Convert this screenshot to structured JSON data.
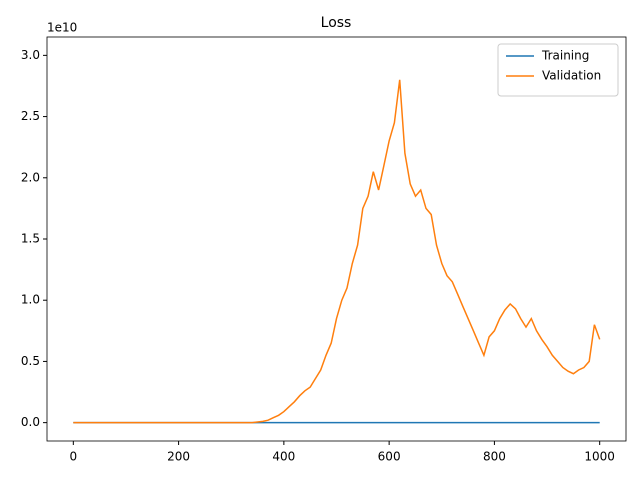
{
  "chart_data": {
    "type": "line",
    "title": "Loss",
    "y_offset_label": "1e10",
    "x": [
      0,
      10,
      20,
      30,
      40,
      50,
      60,
      70,
      80,
      90,
      100,
      110,
      120,
      130,
      140,
      150,
      160,
      170,
      180,
      190,
      200,
      210,
      220,
      230,
      240,
      250,
      260,
      270,
      280,
      290,
      300,
      310,
      320,
      330,
      340,
      350,
      360,
      370,
      380,
      390,
      400,
      410,
      420,
      430,
      440,
      450,
      460,
      470,
      480,
      490,
      500,
      510,
      520,
      530,
      540,
      550,
      560,
      570,
      580,
      590,
      600,
      610,
      620,
      630,
      640,
      650,
      660,
      670,
      680,
      690,
      700,
      710,
      720,
      730,
      740,
      750,
      760,
      770,
      780,
      790,
      800,
      810,
      820,
      830,
      840,
      850,
      860,
      870,
      880,
      890,
      900,
      910,
      920,
      930,
      940,
      950,
      960,
      970,
      980,
      990,
      1000
    ],
    "series": [
      {
        "name": "Training",
        "color": "#1f77b4",
        "values": [
          0,
          0,
          0,
          0,
          0,
          0,
          0,
          0,
          0,
          0,
          0,
          0,
          0,
          0,
          0,
          0,
          0,
          0,
          0,
          0,
          0,
          0,
          0,
          0,
          0,
          0,
          0,
          0,
          0,
          0,
          0,
          0,
          0,
          0,
          0,
          0,
          0,
          0,
          0,
          0,
          0,
          0,
          0,
          0,
          0,
          0,
          0,
          0,
          0,
          0,
          0,
          0,
          0,
          0,
          0,
          0,
          0,
          0,
          0,
          0,
          0,
          0,
          0,
          0,
          0,
          0,
          0,
          0,
          0,
          0,
          0,
          0,
          0,
          0,
          0,
          0,
          0,
          0,
          0,
          0,
          0,
          0,
          0,
          0,
          0,
          0,
          0,
          0,
          0,
          0,
          0,
          0,
          0,
          0,
          0,
          0,
          0,
          0,
          0,
          0,
          0
        ]
      },
      {
        "name": "Validation",
        "color": "#ff7f0e",
        "values": [
          0,
          0,
          0,
          0,
          0,
          0,
          0,
          0,
          0,
          0,
          0,
          0,
          0,
          0,
          0,
          0,
          0,
          0,
          0,
          0,
          0,
          0,
          0,
          0,
          0,
          0,
          0,
          0,
          0,
          0,
          0,
          0,
          0,
          0,
          0,
          0.005,
          0.01,
          0.02,
          0.04,
          0.06,
          0.09,
          0.13,
          0.17,
          0.22,
          0.26,
          0.29,
          0.36,
          0.43,
          0.55,
          0.65,
          0.85,
          1.0,
          1.1,
          1.3,
          1.45,
          1.75,
          1.85,
          2.05,
          1.9,
          2.1,
          2.3,
          2.45,
          2.8,
          2.2,
          1.95,
          1.85,
          1.9,
          1.75,
          1.7,
          1.45,
          1.3,
          1.2,
          1.15,
          1.05,
          0.95,
          0.85,
          0.75,
          0.65,
          0.55,
          0.7,
          0.75,
          0.85,
          0.92,
          0.97,
          0.93,
          0.85,
          0.78,
          0.85,
          0.75,
          0.68,
          0.62,
          0.55,
          0.5,
          0.45,
          0.42,
          0.4,
          0.43,
          0.45,
          0.5,
          0.8,
          0.68
        ]
      }
    ],
    "xlim": [
      -50,
      1050
    ],
    "xticks": [
      0,
      200,
      400,
      600,
      800,
      1000
    ],
    "ylim": [
      -0.15,
      3.15
    ],
    "yticks": [
      {
        "value": 0,
        "label": "0.0"
      },
      0.5,
      {
        "value": 1,
        "label": "1.0"
      },
      1.5,
      {
        "value": 2,
        "label": "2.0"
      },
      2.5,
      {
        "value": 3,
        "label": "3.0"
      }
    ],
    "legend": "upper right"
  }
}
